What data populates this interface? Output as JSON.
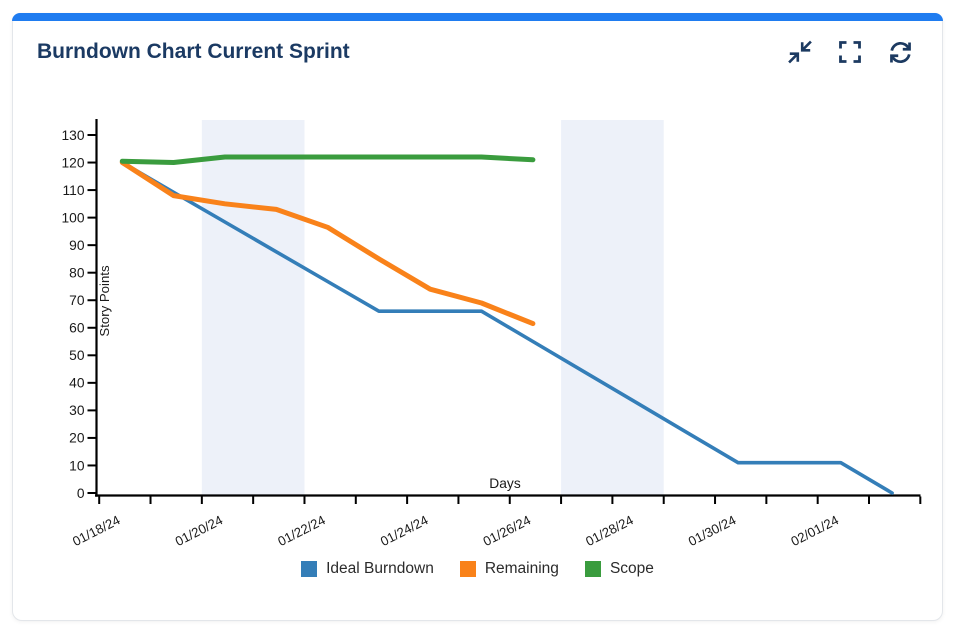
{
  "header": {
    "title": "Burndown Chart Current Sprint",
    "icons": [
      {
        "name": "collapse-icon"
      },
      {
        "name": "fullscreen-icon"
      },
      {
        "name": "refresh-icon"
      }
    ],
    "icon_color": "#1c3a61",
    "accent_color": "#1f7cf0",
    "title_color": "#1b3a63"
  },
  "chart_data": {
    "type": "line",
    "title": "Burndown Chart Current Sprint",
    "xlabel": "Days",
    "ylabel": "Story Points",
    "ylim": [
      0,
      130
    ],
    "y_tick_step": 10,
    "x": [
      "01/18/24",
      "01/19/24",
      "01/20/24",
      "01/21/24",
      "01/22/24",
      "01/23/24",
      "01/24/24",
      "01/25/24",
      "01/26/24",
      "01/27/24",
      "01/28/24",
      "01/29/24",
      "01/30/24",
      "01/31/24",
      "02/01/24",
      "02/02/24"
    ],
    "x_tick_labels": [
      "01/18/24",
      "01/20/24",
      "01/22/24",
      "01/24/24",
      "01/26/24",
      "01/28/24",
      "01/30/24",
      "02/01/24"
    ],
    "x_axis_tick_count": 17,
    "grid": false,
    "legend_position": "bottom",
    "weekend_bands": [
      {
        "from": "01/20/24",
        "to": "01/22/24"
      },
      {
        "from": "01/27/24",
        "to": "01/29/24"
      }
    ],
    "band_color": "#edf1f9",
    "axis_color": "#000000",
    "series": [
      {
        "name": "Ideal Burndown",
        "color": "#347eb8",
        "values": [
          120,
          109.2,
          98.4,
          87.6,
          76.8,
          66,
          66,
          66,
          55,
          44,
          33,
          22,
          11,
          11,
          11,
          0
        ]
      },
      {
        "name": "Remaining",
        "color": "#f9821a",
        "values": [
          120,
          108,
          105,
          103,
          96.5,
          85,
          74,
          69,
          61.5
        ]
      },
      {
        "name": "Scope",
        "color": "#3a9c3e",
        "values": [
          120.5,
          120,
          122,
          122,
          122,
          122,
          122,
          122,
          121
        ]
      }
    ]
  }
}
